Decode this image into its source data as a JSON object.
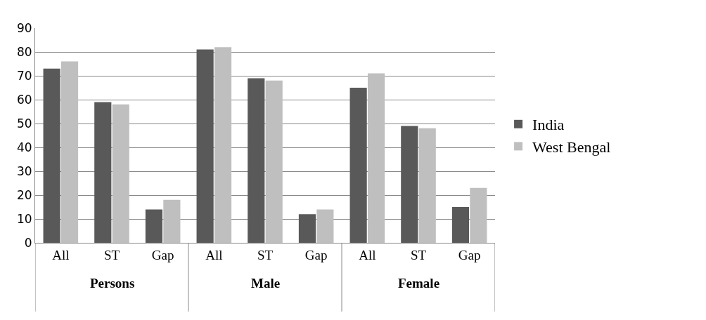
{
  "chart_data": {
    "type": "bar",
    "categories": [
      "All",
      "ST",
      "Gap",
      "All",
      "ST",
      "Gap",
      "All",
      "ST",
      "Gap"
    ],
    "annotations": [
      "Persons",
      "Male",
      "Female"
    ],
    "series": [
      {
        "name": "India",
        "color": "#595959",
        "values": [
          73,
          59,
          14,
          81,
          69,
          12,
          65,
          49,
          15
        ]
      },
      {
        "name": "West Bengal",
        "color": "#bfbfbf",
        "values": [
          76,
          58,
          18,
          82,
          68,
          14,
          71,
          48,
          23
        ]
      }
    ],
    "ylim": [
      0,
      90
    ],
    "yticks": [
      0,
      10,
      20,
      30,
      40,
      50,
      60,
      70,
      80,
      90
    ],
    "grid": "y",
    "legend": "right"
  }
}
